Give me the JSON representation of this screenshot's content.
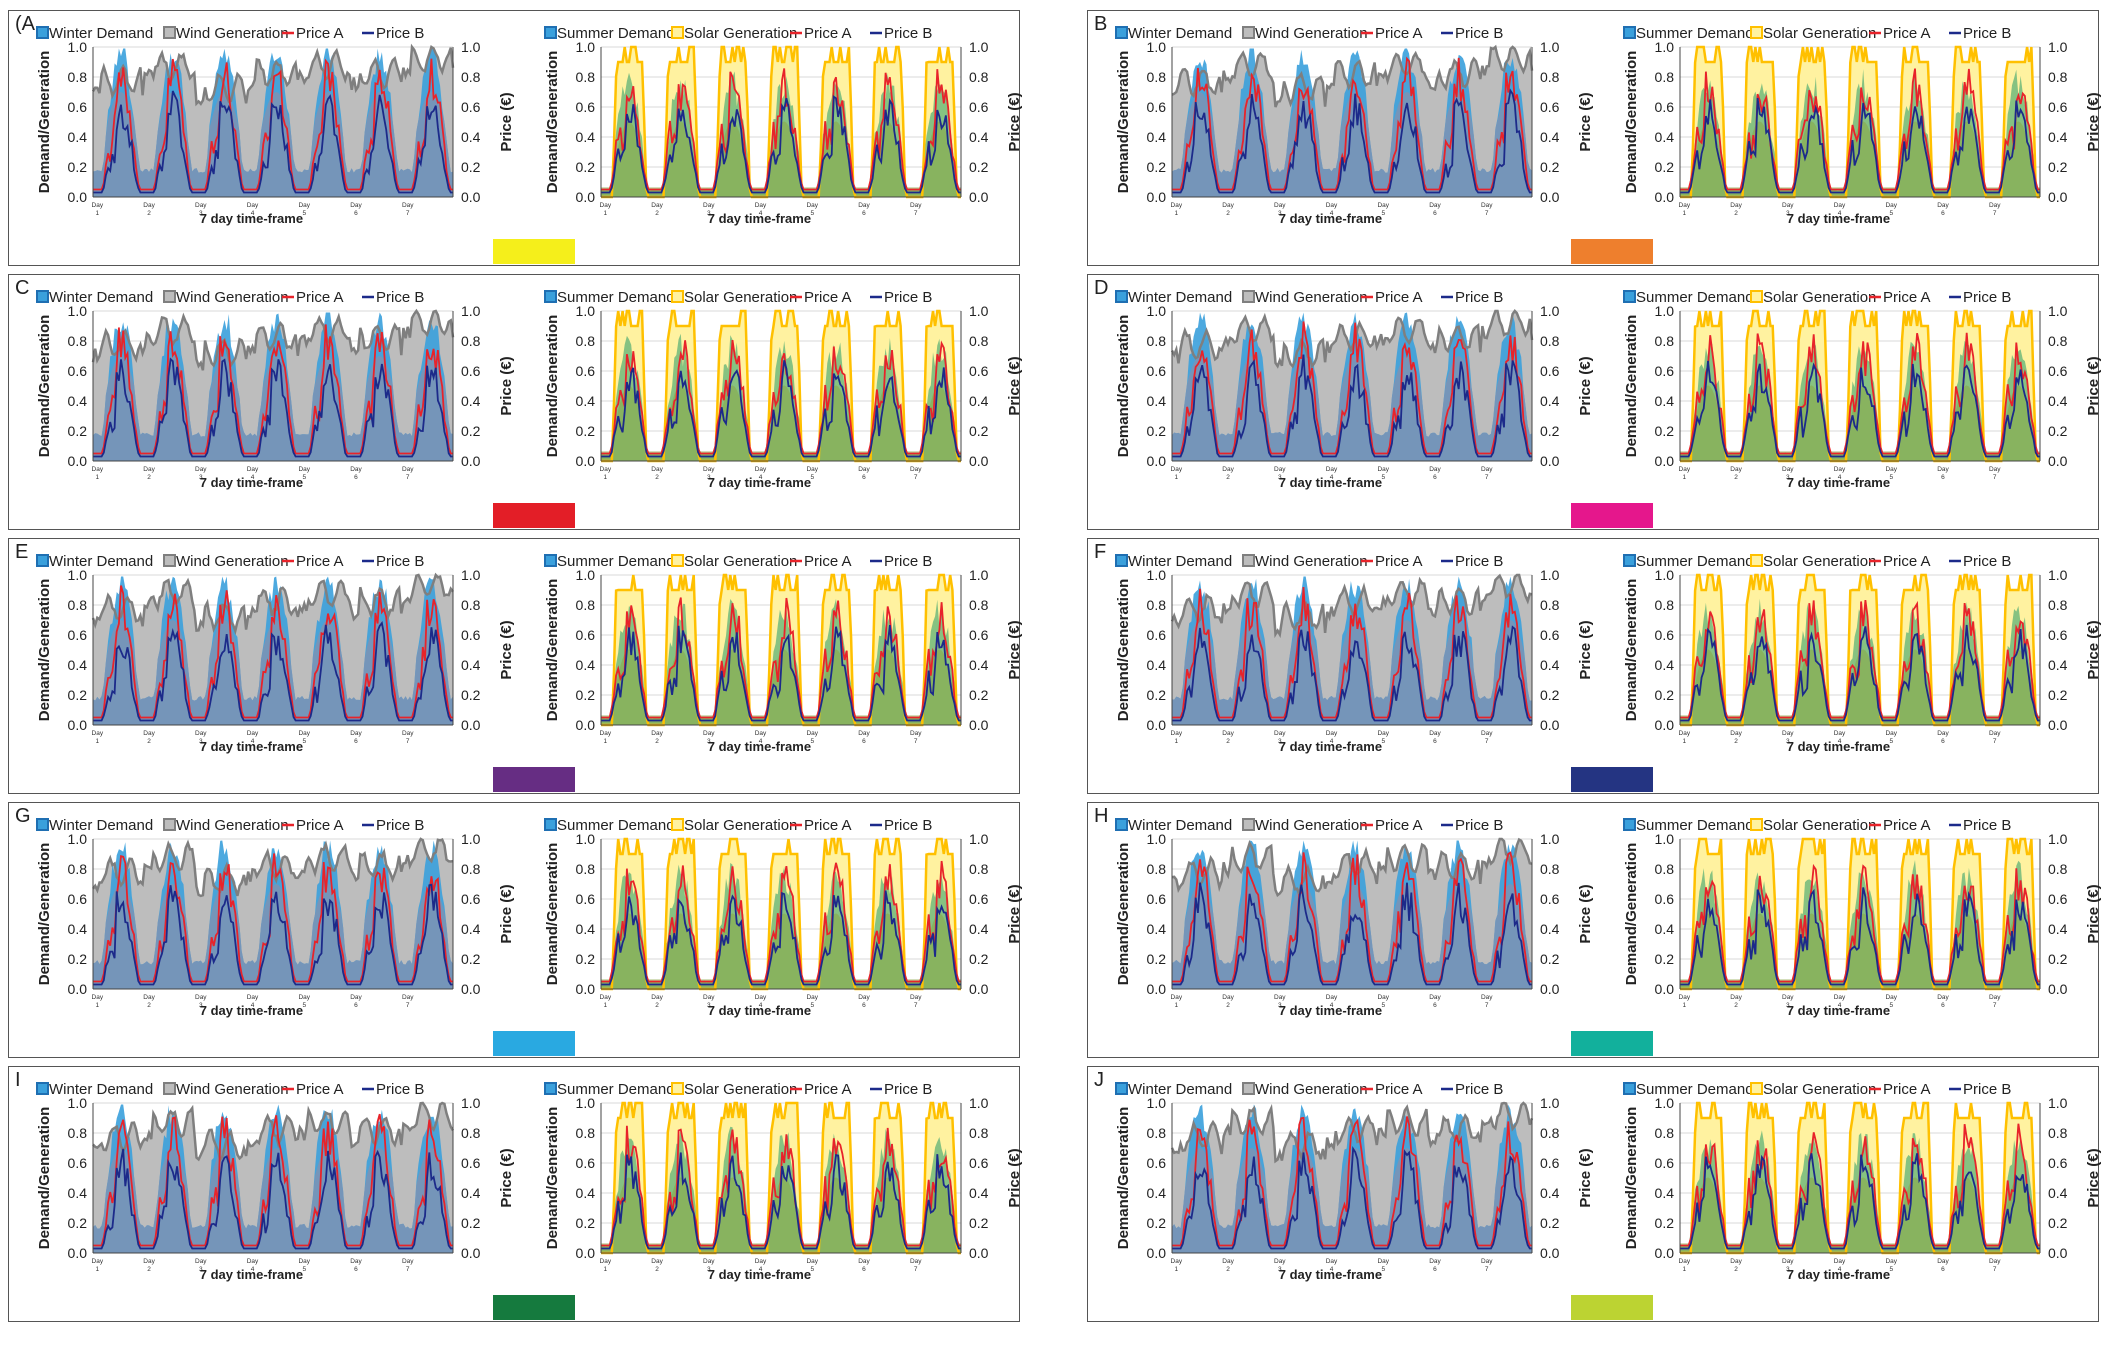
{
  "figure": {
    "common": {
      "winter_legend": [
        "Winter Demand",
        "Wind Generation",
        "Price A",
        "Price B"
      ],
      "summer_legend": [
        "Summer Demand",
        "Solar Generation",
        "Price A",
        "Price B"
      ],
      "left_axis_label": "Demand/Generation",
      "right_axis_label": "Price (€)",
      "x_axis_label": "7 day time-frame",
      "day_prefix": "Day",
      "days": [
        "1",
        "2",
        "3",
        "4",
        "5",
        "6",
        "7"
      ],
      "y_ticks": [
        "0.0",
        "0.2",
        "0.4",
        "0.6",
        "0.8",
        "1.0"
      ]
    },
    "colors": {
      "demand_blue": "#3aa0dc",
      "wind_gray": "#7f7f7f",
      "wind_fill": "#bdbdbd",
      "solar_yellow": "#ffc000",
      "solar_fill": "#fff2a0",
      "summer_green": "#7fbf7f",
      "price_a": "#e8232a",
      "price_b": "#1c2a8a",
      "base_fill": "#7e93b3"
    },
    "panels": [
      {
        "label": "A",
        "shown_label": "(A",
        "swatch": "#f5ef1b"
      },
      {
        "label": "B",
        "shown_label": "B",
        "swatch": "#ee7f2d"
      },
      {
        "label": "C",
        "shown_label": "C",
        "swatch": "#e31e27"
      },
      {
        "label": "D",
        "shown_label": "D",
        "swatch": "#e5178c"
      },
      {
        "label": "E",
        "shown_label": "E",
        "swatch": "#662d83"
      },
      {
        "label": "F",
        "shown_label": "F",
        "swatch": "#243482"
      },
      {
        "label": "G",
        "shown_label": "G",
        "swatch": "#29a9e1"
      },
      {
        "label": "H",
        "shown_label": "H",
        "swatch": "#12b09c"
      },
      {
        "label": "I",
        "shown_label": "I",
        "swatch": "#157a3e"
      },
      {
        "label": "J",
        "shown_label": "J",
        "swatch": "#bcd332"
      }
    ]
  },
  "chart_data": {
    "type": "area",
    "description_series": [
      "Winter Demand",
      "Wind Generation",
      "Price A",
      "Price B",
      "Summer Demand",
      "Solar Generation"
    ],
    "x": [
      "Day 1",
      "Day 2",
      "Day 3",
      "Day 4",
      "Day 5",
      "Day 6",
      "Day 7"
    ],
    "ylim_left": [
      0,
      1
    ],
    "ylim_right": [
      0,
      1
    ],
    "winter_profile": {
      "demand_daily_peak": 0.95,
      "demand_night_low": 0.1,
      "wind_level": [
        0.75,
        0.85,
        0.7,
        0.8,
        0.85,
        0.8,
        0.9
      ],
      "price_a_daily_peak": 0.85,
      "price_b_daily_peak": 0.6
    },
    "summer_profile": {
      "demand_daily_peak": 0.7,
      "solar_daily_plateau": 0.95,
      "price_a_daily_peak": 0.7,
      "price_b_daily_peak": 0.6
    },
    "grid": true,
    "legend": "top"
  }
}
